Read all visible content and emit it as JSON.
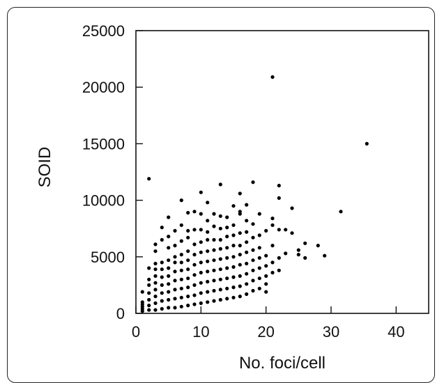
{
  "chart_data": {
    "type": "scatter",
    "title": "",
    "xlabel": "No. foci/cell",
    "ylabel": "SOID",
    "xlim": [
      0,
      45
    ],
    "ylim": [
      0,
      25000
    ],
    "xticks": [
      0,
      10,
      20,
      30,
      40
    ],
    "yticks": [
      0,
      5000,
      10000,
      15000,
      20000,
      25000
    ],
    "grid": false,
    "point_color": "#000000",
    "series": [
      {
        "points": [
          [
            1,
            200
          ],
          [
            1,
            400
          ],
          [
            1,
            600
          ],
          [
            1,
            800
          ],
          [
            1,
            1000
          ],
          [
            1,
            1900
          ],
          [
            2,
            300
          ],
          [
            2,
            700
          ],
          [
            2,
            1200
          ],
          [
            2,
            1800
          ],
          [
            2,
            2500
          ],
          [
            2,
            3000
          ],
          [
            2,
            4000
          ],
          [
            2,
            11900
          ],
          [
            3,
            300
          ],
          [
            3,
            900
          ],
          [
            3,
            1500
          ],
          [
            3,
            2100
          ],
          [
            3,
            2700
          ],
          [
            3,
            3300
          ],
          [
            3,
            3900
          ],
          [
            3,
            4400
          ],
          [
            3,
            5500
          ],
          [
            3,
            6100
          ],
          [
            4,
            400
          ],
          [
            4,
            1100
          ],
          [
            4,
            1800
          ],
          [
            4,
            2500
          ],
          [
            4,
            3200
          ],
          [
            4,
            3900
          ],
          [
            4,
            4500
          ],
          [
            4,
            6500
          ],
          [
            4,
            7600
          ],
          [
            5,
            500
          ],
          [
            5,
            1200
          ],
          [
            5,
            1900
          ],
          [
            5,
            2600
          ],
          [
            5,
            3300
          ],
          [
            5,
            4000
          ],
          [
            5,
            4700
          ],
          [
            5,
            5800
          ],
          [
            5,
            6800
          ],
          [
            5,
            8500
          ],
          [
            6,
            500
          ],
          [
            6,
            1300
          ],
          [
            6,
            2100
          ],
          [
            6,
            2900
          ],
          [
            6,
            3700
          ],
          [
            6,
            4500
          ],
          [
            6,
            5000
          ],
          [
            6,
            6000
          ],
          [
            6,
            7300
          ],
          [
            7,
            600
          ],
          [
            7,
            1400
          ],
          [
            7,
            2200
          ],
          [
            7,
            3000
          ],
          [
            7,
            3800
          ],
          [
            7,
            4500
          ],
          [
            7,
            5200
          ],
          [
            7,
            6400
          ],
          [
            7,
            7800
          ],
          [
            7,
            10000
          ],
          [
            8,
            700
          ],
          [
            8,
            1500
          ],
          [
            8,
            2300
          ],
          [
            8,
            3100
          ],
          [
            8,
            3900
          ],
          [
            8,
            4700
          ],
          [
            8,
            5500
          ],
          [
            8,
            6700
          ],
          [
            8,
            7300
          ],
          [
            8,
            8900
          ],
          [
            9,
            800
          ],
          [
            9,
            1600
          ],
          [
            9,
            2500
          ],
          [
            9,
            3400
          ],
          [
            9,
            4300
          ],
          [
            9,
            5200
          ],
          [
            9,
            6100
          ],
          [
            9,
            7400
          ],
          [
            9,
            9000
          ],
          [
            10,
            900
          ],
          [
            10,
            1800
          ],
          [
            10,
            2700
          ],
          [
            10,
            3600
          ],
          [
            10,
            4500
          ],
          [
            10,
            5400
          ],
          [
            10,
            6300
          ],
          [
            10,
            7400
          ],
          [
            10,
            8800
          ],
          [
            10,
            10700
          ],
          [
            11,
            1000
          ],
          [
            11,
            1900
          ],
          [
            11,
            2800
          ],
          [
            11,
            3700
          ],
          [
            11,
            4600
          ],
          [
            11,
            5500
          ],
          [
            11,
            6500
          ],
          [
            11,
            7200
          ],
          [
            11,
            8200
          ],
          [
            11,
            9800
          ],
          [
            12,
            1100
          ],
          [
            12,
            2000
          ],
          [
            12,
            2900
          ],
          [
            12,
            3800
          ],
          [
            12,
            4700
          ],
          [
            12,
            5600
          ],
          [
            12,
            6500
          ],
          [
            12,
            7700
          ],
          [
            12,
            8800
          ],
          [
            13,
            1200
          ],
          [
            13,
            2100
          ],
          [
            13,
            3000
          ],
          [
            13,
            3900
          ],
          [
            13,
            4800
          ],
          [
            13,
            5700
          ],
          [
            13,
            6500
          ],
          [
            13,
            7500
          ],
          [
            13,
            8600
          ],
          [
            13,
            11400
          ],
          [
            14,
            1300
          ],
          [
            14,
            2200
          ],
          [
            14,
            3100
          ],
          [
            14,
            4000
          ],
          [
            14,
            4900
          ],
          [
            14,
            5800
          ],
          [
            14,
            6800
          ],
          [
            14,
            7600
          ],
          [
            14,
            8500
          ],
          [
            15,
            1400
          ],
          [
            15,
            2300
          ],
          [
            15,
            3200
          ],
          [
            15,
            4100
          ],
          [
            15,
            5000
          ],
          [
            15,
            6000
          ],
          [
            15,
            6900
          ],
          [
            15,
            7800
          ],
          [
            15,
            9500
          ],
          [
            16,
            1500
          ],
          [
            16,
            2400
          ],
          [
            16,
            3300
          ],
          [
            16,
            4300
          ],
          [
            16,
            5200
          ],
          [
            16,
            6000
          ],
          [
            16,
            7100
          ],
          [
            16,
            8800
          ],
          [
            16,
            10600
          ],
          [
            16,
            9000
          ],
          [
            17,
            1700
          ],
          [
            17,
            2600
          ],
          [
            17,
            3500
          ],
          [
            17,
            4400
          ],
          [
            17,
            5400
          ],
          [
            17,
            6300
          ],
          [
            17,
            7200
          ],
          [
            17,
            8200
          ],
          [
            17,
            9600
          ],
          [
            18,
            2000
          ],
          [
            18,
            2900
          ],
          [
            18,
            3800
          ],
          [
            18,
            4700
          ],
          [
            18,
            5600
          ],
          [
            18,
            6700
          ],
          [
            18,
            7900
          ],
          [
            18,
            11600
          ],
          [
            19,
            2200
          ],
          [
            19,
            3100
          ],
          [
            19,
            4000
          ],
          [
            19,
            4900
          ],
          [
            19,
            5800
          ],
          [
            19,
            6900
          ],
          [
            19,
            8800
          ],
          [
            20,
            1900
          ],
          [
            20,
            2600
          ],
          [
            20,
            3300
          ],
          [
            20,
            4200
          ],
          [
            20,
            5100
          ],
          [
            20,
            7300
          ],
          [
            21,
            3600
          ],
          [
            21,
            4500
          ],
          [
            21,
            6000
          ],
          [
            21,
            7800
          ],
          [
            21,
            8400
          ],
          [
            21,
            20900
          ],
          [
            22,
            3800
          ],
          [
            22,
            4900
          ],
          [
            22,
            7400
          ],
          [
            22,
            10200
          ],
          [
            22,
            11300
          ],
          [
            23,
            5300
          ],
          [
            23,
            7400
          ],
          [
            24,
            7100
          ],
          [
            24,
            9300
          ],
          [
            25,
            5600
          ],
          [
            25,
            5200
          ],
          [
            26,
            4900
          ],
          [
            26,
            6200
          ],
          [
            28,
            6000
          ],
          [
            29,
            5100
          ],
          [
            31.5,
            9000
          ],
          [
            35.5,
            15000
          ]
        ]
      }
    ]
  }
}
